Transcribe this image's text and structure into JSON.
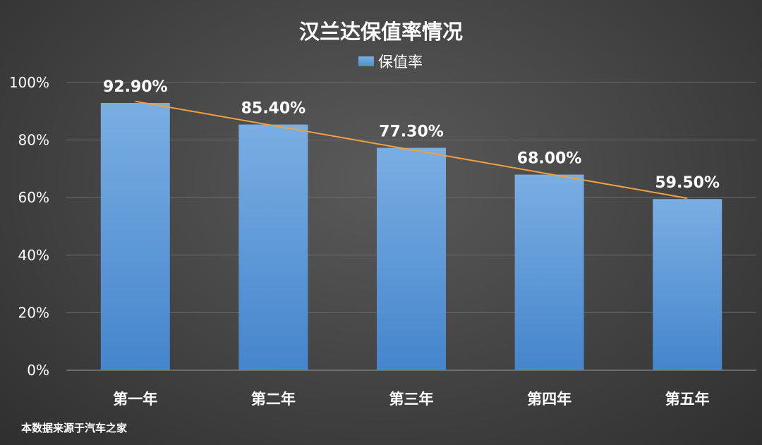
{
  "chart_data": {
    "type": "bar",
    "title": "汉兰达保值率情况",
    "legend": [
      "保值率"
    ],
    "legend_position": "top",
    "categories": [
      "第一年",
      "第二年",
      "第三年",
      "第四年",
      "第五年"
    ],
    "series": [
      {
        "name": "保值率",
        "values": [
          92.9,
          85.4,
          77.3,
          68.0,
          59.5
        ],
        "labels": [
          "92.90%",
          "85.40%",
          "77.30%",
          "68.00%",
          "59.50%"
        ]
      }
    ],
    "trendline": "linear",
    "y_ticks": [
      "0%",
      "20%",
      "40%",
      "60%",
      "80%",
      "100%"
    ],
    "ylim": [
      0,
      100
    ],
    "grid": true,
    "colors": {
      "bar_top": "#7aaee3",
      "bar_bottom": "#4585cc",
      "trendline": "#f0a040",
      "gridline": "#6a6a6a",
      "text": "#ffffff"
    }
  },
  "footnote": "本数据来源于汽车之家"
}
